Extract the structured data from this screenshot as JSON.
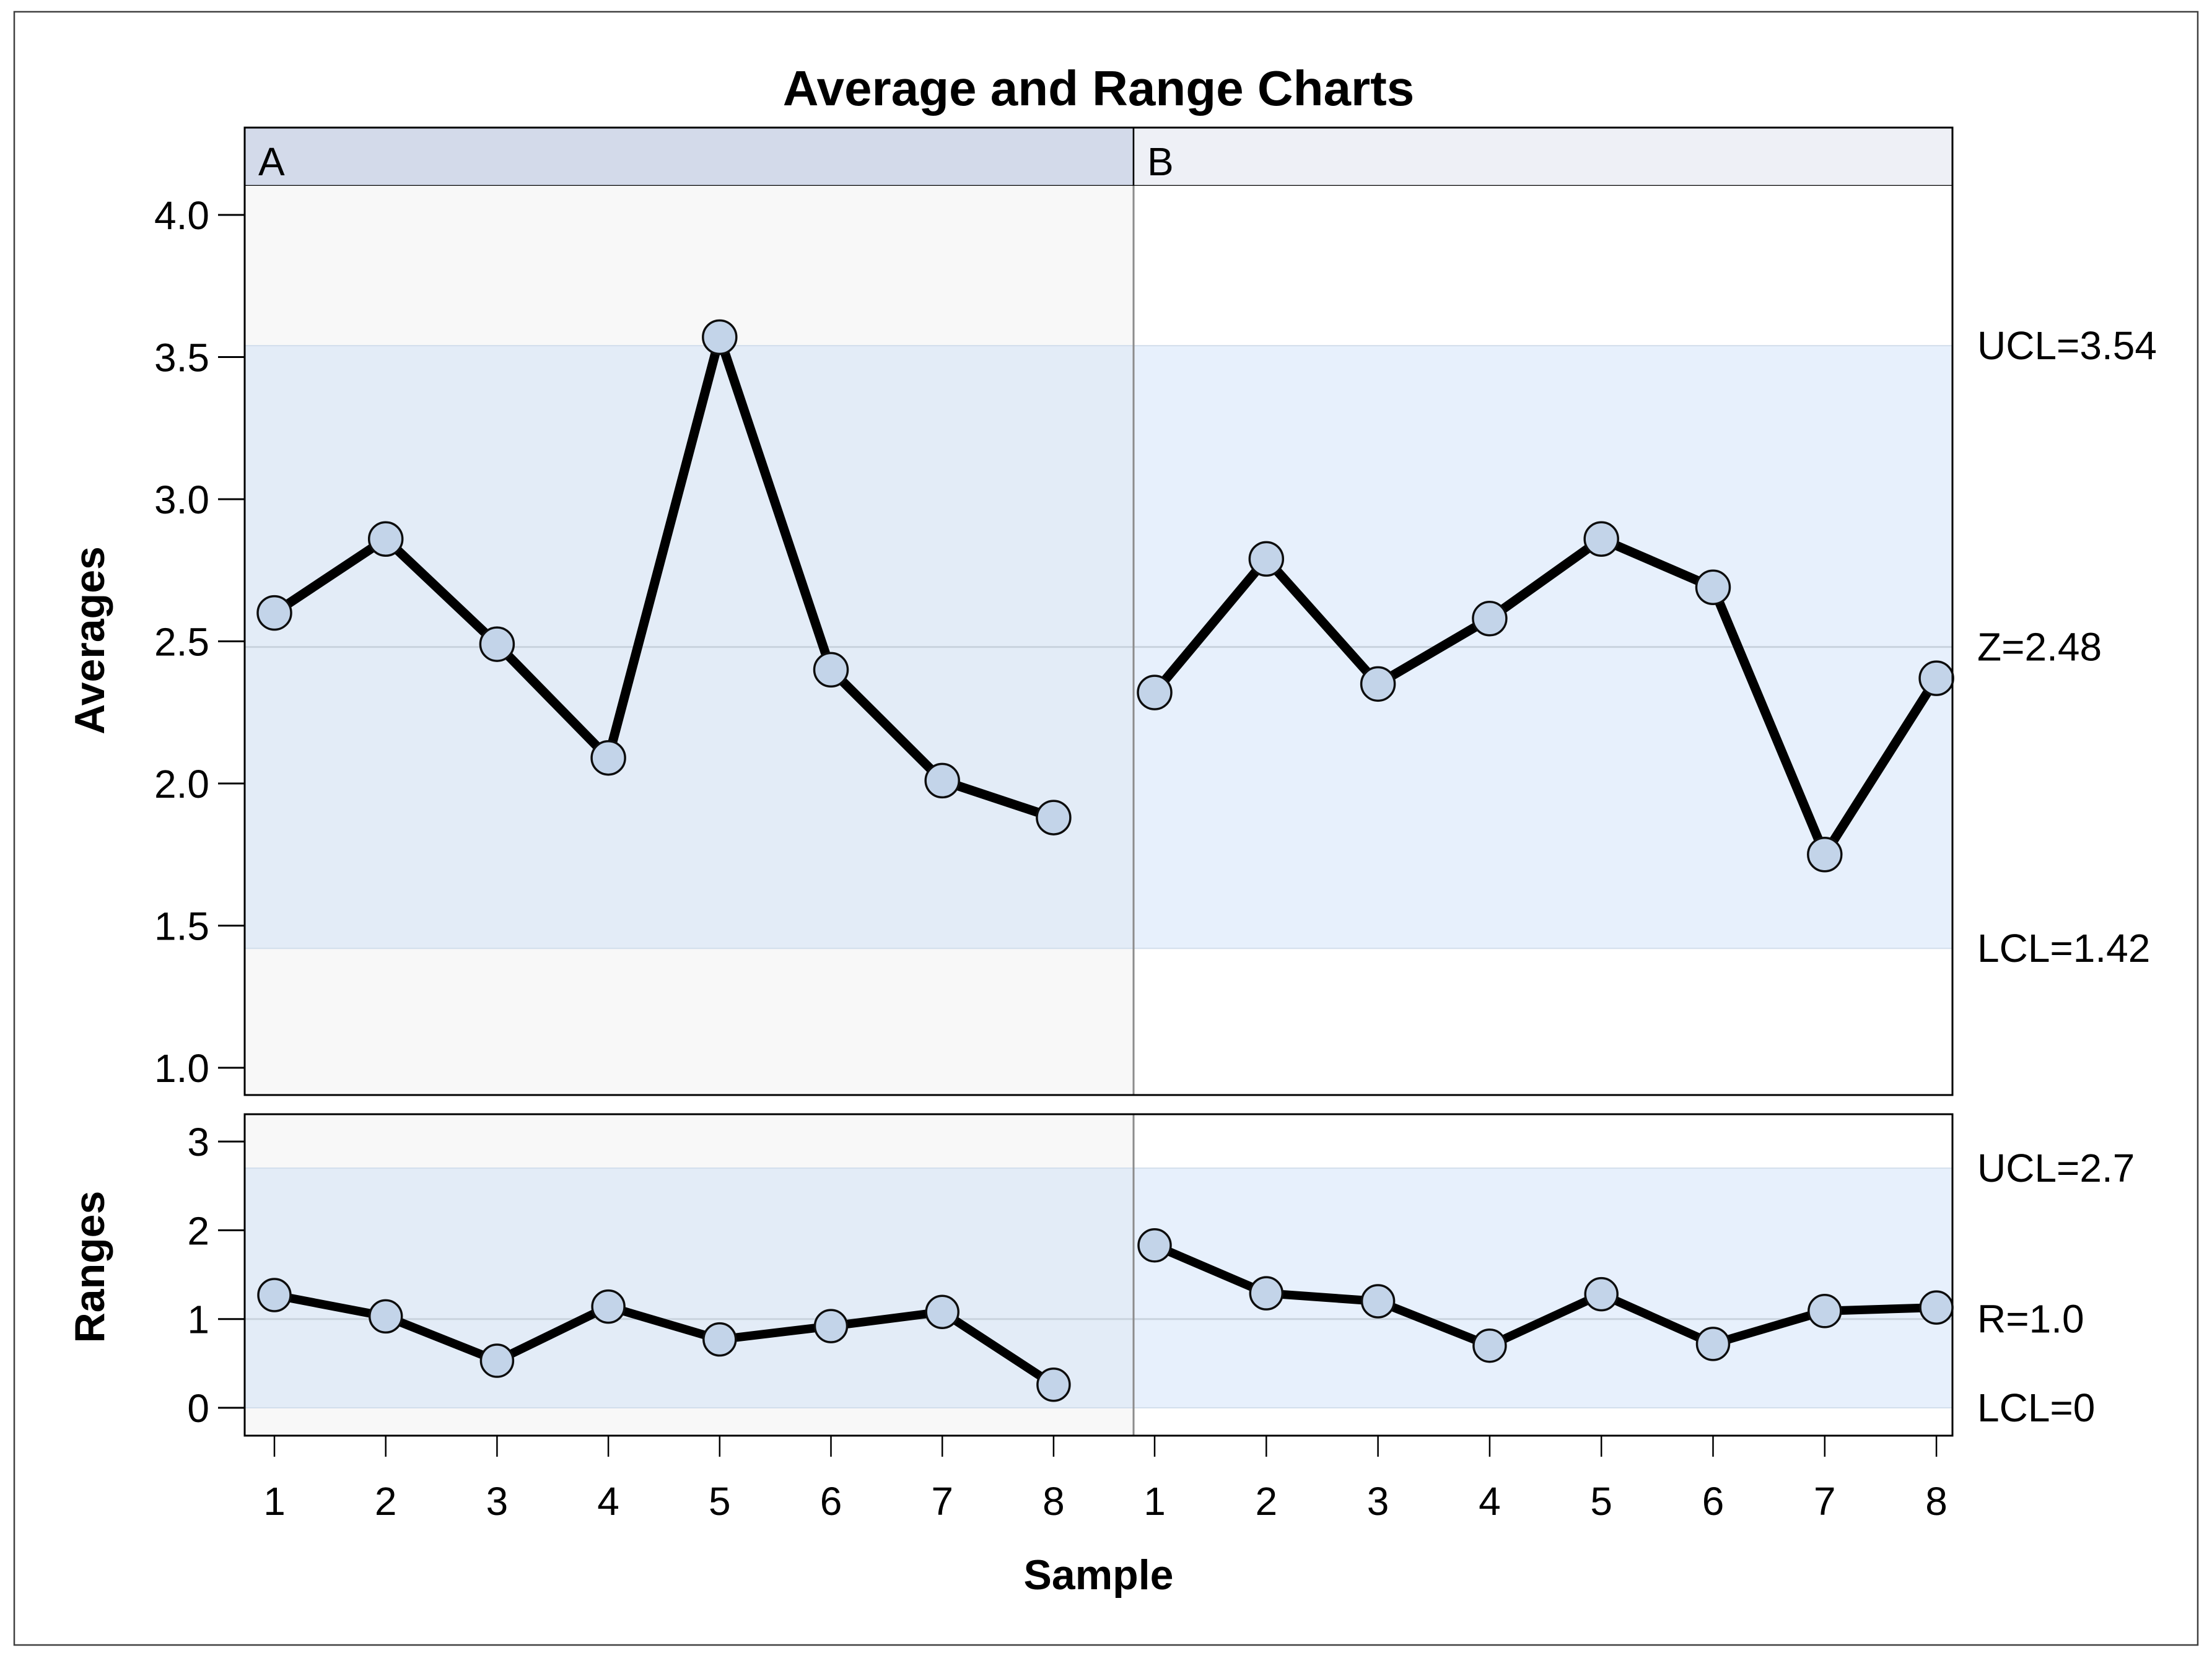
{
  "title": "Average and Range Charts",
  "xlabel": "Sample",
  "panel_labels": [
    "A",
    "B"
  ],
  "colors": {
    "outer_border": "#3f3f3f",
    "frame": "#000000",
    "header_a": "#d3daea",
    "header_b": "#eef0f6",
    "panel_a_bg": "#f8f8f8",
    "panel_b_bg": "#ffffff",
    "band_a": "#e3ecf7",
    "band_b": "#e7f0fc",
    "band_edge": "#d2deec",
    "center_line": "#c9d3de",
    "divider": "#8c8c8c",
    "series_line": "#000000",
    "marker_fill": "#c3d4e9",
    "marker_stroke": "#0d0d0d",
    "text": "#000000"
  },
  "chart_data": [
    {
      "type": "line",
      "name": "averages",
      "ylabel": "Averages",
      "x": [
        1,
        2,
        3,
        4,
        5,
        6,
        7,
        8
      ],
      "series": [
        {
          "name": "A",
          "values": [
            2.6,
            2.86,
            2.49,
            2.09,
            3.57,
            2.4,
            2.01,
            1.88
          ]
        },
        {
          "name": "B",
          "values": [
            2.32,
            2.79,
            2.35,
            2.58,
            2.86,
            2.69,
            1.75,
            2.37
          ]
        }
      ],
      "yticks": [
        4.0,
        3.5,
        3.0,
        2.5,
        2.0,
        1.5,
        1.0
      ],
      "ytick_labels": [
        "4.0",
        "3.5",
        "3.0",
        "2.5",
        "2.0",
        "1.5",
        "1.0"
      ],
      "ylim": [
        0.9,
        4.1
      ],
      "grid": false,
      "limits": [
        {
          "value": 3.54,
          "label": "UCL=3.54"
        },
        {
          "value": 2.48,
          "label": "Z=2.48"
        },
        {
          "value": 1.42,
          "label": "LCL=1.42"
        }
      ],
      "shaded_band": [
        1.42,
        3.54
      ],
      "legend": "none"
    },
    {
      "type": "line",
      "name": "ranges",
      "ylabel": "Ranges",
      "x": [
        1,
        2,
        3,
        4,
        5,
        6,
        7,
        8
      ],
      "series": [
        {
          "name": "A",
          "values": [
            1.27,
            1.03,
            0.53,
            1.14,
            0.77,
            0.92,
            1.08,
            0.26
          ]
        },
        {
          "name": "B",
          "values": [
            1.83,
            1.29,
            1.2,
            0.7,
            1.28,
            0.72,
            1.09,
            1.13
          ]
        }
      ],
      "yticks": [
        3,
        2,
        1,
        0
      ],
      "ytick_labels": [
        "3",
        "2",
        "1",
        "0"
      ],
      "ylim": [
        -0.31,
        3.29
      ],
      "grid": false,
      "limits": [
        {
          "value": 2.7,
          "label": "UCL=2.7"
        },
        {
          "value": 1.0,
          "label": "R=1.0"
        },
        {
          "value": 0,
          "label": "LCL=0"
        }
      ],
      "shaded_band": [
        0,
        2.7
      ],
      "legend": "none"
    }
  ]
}
